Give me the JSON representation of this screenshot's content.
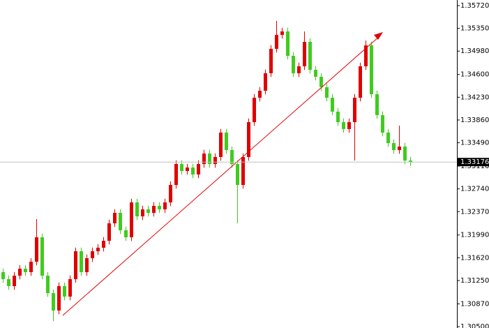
{
  "chart_data": {
    "type": "candlestick",
    "up_color": "#e00000",
    "down_color": "#3fcc1f",
    "ylim": [
      1.30478,
      1.35811
    ],
    "yticks": [
      {
        "value": 1.3572,
        "label": "1.35720"
      },
      {
        "value": 1.3535,
        "label": "1.35350"
      },
      {
        "value": 1.3498,
        "label": "1.34980"
      },
      {
        "value": 1.346,
        "label": "1.34600"
      },
      {
        "value": 1.3423,
        "label": "1.34230"
      },
      {
        "value": 1.3386,
        "label": "1.33860"
      },
      {
        "value": 1.3349,
        "label": "1.33490"
      },
      {
        "value": 1.3311,
        "label": "1.33110"
      },
      {
        "value": 1.3274,
        "label": "1.32740"
      },
      {
        "value": 1.3237,
        "label": "1.32370"
      },
      {
        "value": 1.3199,
        "label": "1.31990"
      },
      {
        "value": 1.3162,
        "label": "1.31620"
      },
      {
        "value": 1.3125,
        "label": "1.31250"
      },
      {
        "value": 1.3087,
        "label": "1.30870"
      },
      {
        "value": 1.305,
        "label": "1.30500"
      }
    ],
    "last_price": 1.33176,
    "open": [
      1.31386,
      1.31272,
      1.31159,
      1.31329,
      1.31442,
      1.31386,
      1.31556,
      1.31953,
      1.31329,
      1.31045,
      1.30762,
      1.31159,
      1.30989,
      1.31272,
      1.31726,
      1.31386,
      1.31613,
      1.31726,
      1.31783,
      1.31896,
      1.3218,
      1.3235,
      1.32067,
      1.31953,
      1.3252,
      1.32293,
      1.32407,
      1.3235,
      1.32464,
      1.32407,
      1.3252,
      1.32804,
      1.33144,
      1.33031,
      1.33088,
      1.32974,
      1.33144,
      1.33315,
      1.33144,
      1.33258,
      1.33655,
      1.33371,
      1.33144,
      1.32804,
      1.33258,
      1.33825,
      1.34222,
      1.34336,
      1.3462,
      1.35017,
      1.35244,
      1.353,
      1.34903,
      1.3462,
      1.34733,
      1.3513,
      1.34676,
      1.34563,
      1.34393,
      1.34222,
      1.33996,
      1.33825,
      1.33712,
      1.33825,
      1.34222,
      1.34733,
      1.35073,
      1.34279,
      1.33939,
      1.33655,
      1.33485,
      1.33371,
      1.33428,
      1.33201
    ],
    "high": [
      1.31446,
      1.31332,
      1.31389,
      1.31502,
      1.31502,
      1.31616,
      1.3225,
      1.32013,
      1.31389,
      1.31105,
      1.31219,
      1.31219,
      1.31332,
      1.31786,
      1.31786,
      1.31673,
      1.31786,
      1.31843,
      1.31956,
      1.3224,
      1.3241,
      1.3241,
      1.32127,
      1.3258,
      1.3258,
      1.32467,
      1.32467,
      1.32524,
      1.32524,
      1.3258,
      1.32864,
      1.33204,
      1.33204,
      1.33148,
      1.33148,
      1.33204,
      1.33375,
      1.33375,
      1.33318,
      1.33715,
      1.33715,
      1.33431,
      1.33204,
      1.33318,
      1.33885,
      1.34282,
      1.34396,
      1.3468,
      1.35077,
      1.35471,
      1.3536,
      1.3536,
      1.34963,
      1.34793,
      1.353,
      1.3519,
      1.34736,
      1.34623,
      1.34453,
      1.34282,
      1.34056,
      1.33885,
      1.33885,
      1.34282,
      1.34793,
      1.35153,
      1.35133,
      1.34339,
      1.33999,
      1.33715,
      1.33545,
      1.33769,
      1.33488,
      1.33262
    ],
    "low": [
      1.31212,
      1.31099,
      1.31099,
      1.31269,
      1.31326,
      1.31326,
      1.31496,
      1.31269,
      1.30985,
      1.30589,
      1.30702,
      1.30929,
      1.30929,
      1.31212,
      1.31326,
      1.31326,
      1.31553,
      1.31666,
      1.31723,
      1.31836,
      1.3212,
      1.32007,
      1.31893,
      1.31893,
      1.32233,
      1.32233,
      1.3229,
      1.3229,
      1.32347,
      1.32347,
      1.3246,
      1.32744,
      1.32971,
      1.32971,
      1.32914,
      1.32914,
      1.33084,
      1.33084,
      1.33084,
      1.33198,
      1.33311,
      1.33084,
      1.3218,
      1.32744,
      1.33198,
      1.33765,
      1.34162,
      1.34276,
      1.3456,
      1.34957,
      1.35184,
      1.34843,
      1.3456,
      1.3456,
      1.34673,
      1.34616,
      1.34503,
      1.34333,
      1.34162,
      1.33936,
      1.33765,
      1.33652,
      1.33652,
      1.33201,
      1.34162,
      1.34673,
      1.34219,
      1.33879,
      1.33595,
      1.33425,
      1.33311,
      1.33311,
      1.33141,
      1.33116
    ],
    "close": [
      1.31272,
      1.31159,
      1.31329,
      1.31442,
      1.31386,
      1.31556,
      1.31953,
      1.31329,
      1.31045,
      1.30762,
      1.31159,
      1.30989,
      1.31272,
      1.31726,
      1.31386,
      1.31613,
      1.31726,
      1.31783,
      1.31896,
      1.3218,
      1.3235,
      1.32067,
      1.31953,
      1.3252,
      1.32293,
      1.32407,
      1.3235,
      1.32464,
      1.32407,
      1.3252,
      1.32804,
      1.33144,
      1.33031,
      1.33088,
      1.32974,
      1.33144,
      1.33315,
      1.33144,
      1.33258,
      1.33655,
      1.33371,
      1.33144,
      1.32804,
      1.33258,
      1.33825,
      1.34222,
      1.34336,
      1.3462,
      1.35017,
      1.35244,
      1.353,
      1.34903,
      1.3462,
      1.34733,
      1.3513,
      1.34676,
      1.34563,
      1.34393,
      1.34222,
      1.33996,
      1.33825,
      1.33712,
      1.33825,
      1.34222,
      1.34733,
      1.35073,
      1.34279,
      1.33939,
      1.33655,
      1.33485,
      1.33371,
      1.33428,
      1.33201,
      1.33176
    ]
  }
}
